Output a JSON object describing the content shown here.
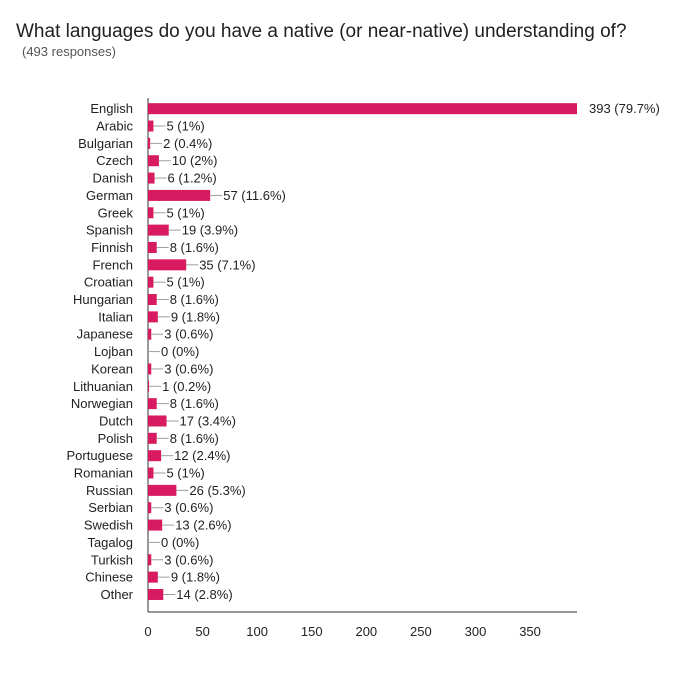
{
  "chart_data": {
    "type": "bar",
    "orientation": "horizontal",
    "title": "What languages do you have a native (or near-native) understanding of?",
    "subtitle": "(493 responses)",
    "categories": [
      "English",
      "Arabic",
      "Bulgarian",
      "Czech",
      "Danish",
      "German",
      "Greek",
      "Spanish",
      "Finnish",
      "French",
      "Croatian",
      "Hungarian",
      "Italian",
      "Japanese",
      "Lojban",
      "Korean",
      "Lithuanian",
      "Norwegian",
      "Dutch",
      "Polish",
      "Portuguese",
      "Romanian",
      "Russian",
      "Serbian",
      "Swedish",
      "Tagalog",
      "Turkish",
      "Chinese",
      "Other"
    ],
    "values": [
      393,
      5,
      2,
      10,
      6,
      57,
      5,
      19,
      8,
      35,
      5,
      8,
      9,
      3,
      0,
      3,
      1,
      8,
      17,
      8,
      12,
      5,
      26,
      3,
      13,
      0,
      3,
      9,
      14
    ],
    "data_labels": [
      "393 (79.7%)",
      "5 (1%)",
      "2 (0.4%)",
      "10 (2%)",
      "6 (1.2%)",
      "57 (11.6%)",
      "5 (1%)",
      "19 (3.9%)",
      "8 (1.6%)",
      "35 (7.1%)",
      "5 (1%)",
      "8 (1.6%)",
      "9 (1.8%)",
      "3 (0.6%)",
      "0 (0%)",
      "3 (0.6%)",
      "1 (0.2%)",
      "8 (1.6%)",
      "17 (3.4%)",
      "8 (1.6%)",
      "12 (2.4%)",
      "5 (1%)",
      "26 (5.3%)",
      "3 (0.6%)",
      "13 (2.6%)",
      "0 (0%)",
      "3 (0.6%)",
      "9 (1.8%)",
      "14 (2.8%)"
    ],
    "x_ticks": [
      0,
      50,
      100,
      150,
      200,
      250,
      300,
      350
    ],
    "xlim": [
      0,
      393
    ],
    "grid": false,
    "legend": "none",
    "bar_color": "#d81b60"
  }
}
